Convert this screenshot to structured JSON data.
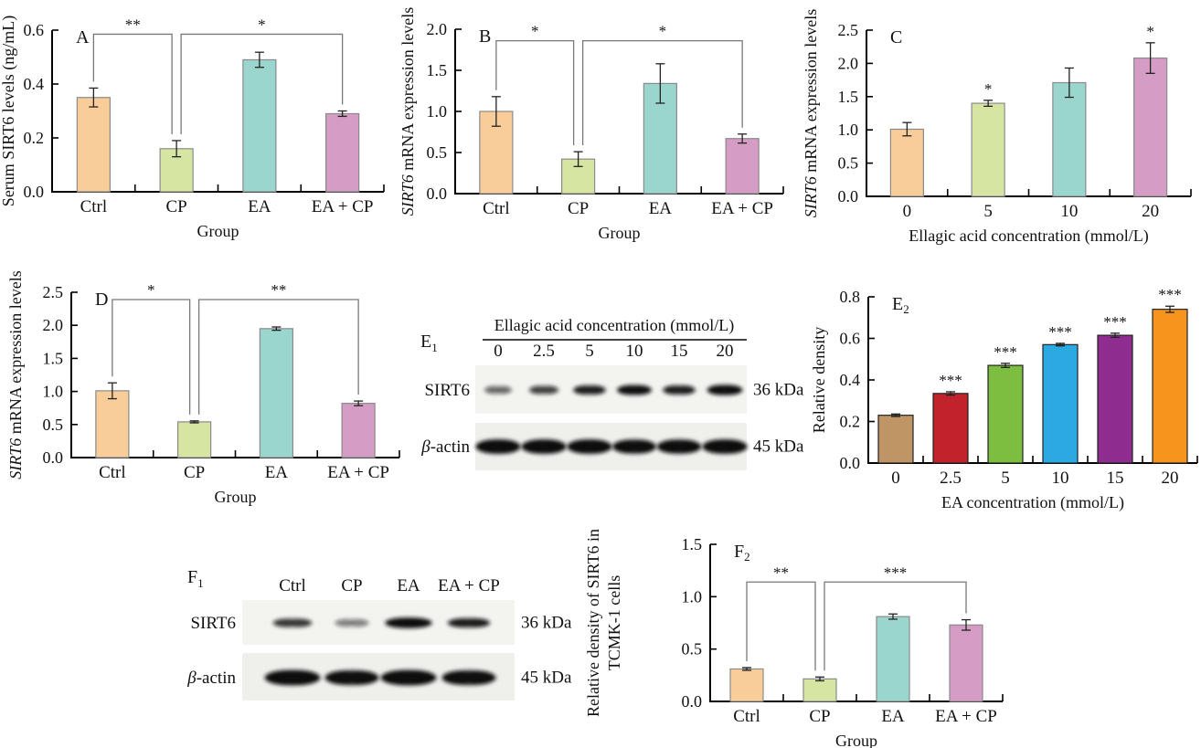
{
  "figure": {
    "background": "#ffffff",
    "text_color": "#111111",
    "axis_color": "#000000",
    "bracket_color": "#787878",
    "star_color": "#4f4f4f",
    "group_bar_stroke": "#8a8a8a",
    "e2_bar_stroke": "#222222"
  },
  "chart_data": [
    {
      "id": "A",
      "type": "bar",
      "panel_label": "A",
      "panel_sub": "",
      "ylabel_lines": [
        [
          {
            "t": "Serum SIRT6 levels (ng/mL)",
            "i": false
          }
        ]
      ],
      "xlabel": "Group",
      "categories": [
        "Ctrl",
        "CP",
        "EA",
        "EA + CP"
      ],
      "values": [
        0.35,
        0.16,
        0.49,
        0.29
      ],
      "errors": [
        0.035,
        0.03,
        0.028,
        0.01
      ],
      "ylim": [
        0,
        0.6
      ],
      "yticks": [
        "0.0",
        "0.2",
        "0.4",
        "0.6"
      ],
      "bar_colors": [
        "#F8CD99",
        "#D6E5A2",
        "#9BD6CE",
        "#D59CC5"
      ],
      "bar_stroke": "#8a8a8a",
      "sig_above": [
        null,
        null,
        null,
        null
      ],
      "brackets": [
        {
          "from": 0,
          "to": 1,
          "label": "**",
          "top": 0.585,
          "off": [
            0,
            -5
          ]
        },
        {
          "from": 1,
          "to": 3,
          "label": "*",
          "top": 0.585,
          "off": [
            5,
            0
          ]
        }
      ]
    },
    {
      "id": "B",
      "type": "bar",
      "panel_label": "B",
      "panel_sub": "",
      "ylabel_lines": [
        [
          {
            "t": "SIRT6",
            "i": true
          },
          {
            "t": " mRNA expression levels",
            "i": false
          }
        ]
      ],
      "xlabel": "Group",
      "categories": [
        "Ctrl",
        "CP",
        "EA",
        "EA + CP"
      ],
      "values": [
        1.0,
        0.42,
        1.34,
        0.67
      ],
      "errors": [
        0.18,
        0.09,
        0.24,
        0.055
      ],
      "ylim": [
        0,
        2.0
      ],
      "yticks": [
        "0.0",
        "0.5",
        "1.0",
        "1.5",
        "2.0"
      ],
      "bar_colors": [
        "#F8CD99",
        "#D6E5A2",
        "#9BD6CE",
        "#D59CC5"
      ],
      "bar_stroke": "#8a8a8a",
      "sig_above": [
        null,
        null,
        null,
        null
      ],
      "brackets": [
        {
          "from": 0,
          "to": 1,
          "label": "*",
          "top": 1.86,
          "off": [
            0,
            -5
          ]
        },
        {
          "from": 1,
          "to": 3,
          "label": "*",
          "top": 1.86,
          "off": [
            5,
            0
          ]
        }
      ]
    },
    {
      "id": "C",
      "type": "bar",
      "panel_label": "C",
      "panel_sub": "",
      "ylabel_lines": [
        [
          {
            "t": "SIRT6",
            "i": true
          },
          {
            "t": " mRNA expression levels",
            "i": false
          }
        ]
      ],
      "xlabel": "Ellagic acid concentration (mmol/L)",
      "categories": [
        "0",
        "5",
        "10",
        "20"
      ],
      "values": [
        1.01,
        1.4,
        1.71,
        2.08
      ],
      "errors": [
        0.1,
        0.045,
        0.22,
        0.23
      ],
      "ylim": [
        0,
        2.5
      ],
      "yticks": [
        "0.0",
        "0.5",
        "1.0",
        "1.5",
        "2.0",
        "2.5"
      ],
      "bar_colors": [
        "#F8CD99",
        "#D6E5A2",
        "#9BD6CE",
        "#D59CC5"
      ],
      "bar_stroke": "#8a8a8a",
      "sig_above": [
        null,
        "*",
        null,
        "*"
      ],
      "brackets": []
    },
    {
      "id": "D",
      "type": "bar",
      "panel_label": "D",
      "panel_sub": "",
      "ylabel_lines": [
        [
          {
            "t": "SIRT6",
            "i": true
          },
          {
            "t": " mRNA expression levels",
            "i": false
          }
        ]
      ],
      "xlabel": "Group",
      "categories": [
        "Ctrl",
        "CP",
        "EA",
        "EA + CP"
      ],
      "values": [
        1.01,
        0.54,
        1.95,
        0.82
      ],
      "errors": [
        0.12,
        0.015,
        0.025,
        0.035
      ],
      "ylim": [
        0,
        2.5
      ],
      "yticks": [
        "0.0",
        "0.5",
        "1.0",
        "1.5",
        "2.0",
        "2.5"
      ],
      "bar_colors": [
        "#F8CD99",
        "#D6E5A2",
        "#9BD6CE",
        "#D59CC5"
      ],
      "bar_stroke": "#8a8a8a",
      "sig_above": [
        null,
        null,
        null,
        null
      ],
      "brackets": [
        {
          "from": 0,
          "to": 1,
          "label": "*",
          "top": 2.39,
          "off": [
            0,
            -5
          ]
        },
        {
          "from": 1,
          "to": 3,
          "label": "**",
          "top": 2.39,
          "off": [
            5,
            0
          ]
        }
      ]
    },
    {
      "id": "E2",
      "type": "bar",
      "panel_label": "E",
      "panel_sub": "2",
      "ylabel_lines": [
        [
          {
            "t": "Relative density",
            "i": false
          }
        ]
      ],
      "xlabel": "EA concentration (mmol/L)",
      "categories": [
        "0",
        "2.5",
        "5",
        "10",
        "15",
        "20"
      ],
      "values": [
        0.23,
        0.335,
        0.47,
        0.57,
        0.615,
        0.74
      ],
      "errors": [
        0.006,
        0.008,
        0.01,
        0.006,
        0.01,
        0.015
      ],
      "ylim": [
        0,
        0.8
      ],
      "yticks": [
        "0.0",
        "0.2",
        "0.4",
        "0.6",
        "0.8"
      ],
      "bar_colors": [
        "#BF9565",
        "#C2222B",
        "#7CBE3F",
        "#2BA9E1",
        "#8F2C90",
        "#F6951E"
      ],
      "bar_stroke": "#222222",
      "sig_above": [
        null,
        "***",
        "***",
        "***",
        "***",
        "***"
      ],
      "brackets": []
    },
    {
      "id": "F2",
      "type": "bar",
      "panel_label": "F",
      "panel_sub": "2",
      "ylabel_lines": [
        [
          {
            "t": "Relative density of SIRT6 in",
            "i": false
          }
        ],
        [
          {
            "t": "TCMK-1 cells",
            "i": false
          }
        ]
      ],
      "xlabel": "Group",
      "categories": [
        "Ctrl",
        "CP",
        "EA",
        "EA + CP"
      ],
      "values": [
        0.31,
        0.215,
        0.81,
        0.73
      ],
      "errors": [
        0.013,
        0.018,
        0.025,
        0.05
      ],
      "ylim": [
        0,
        1.5
      ],
      "yticks": [
        "0.0",
        "0.5",
        "1.0",
        "1.5"
      ],
      "bar_colors": [
        "#F8CD99",
        "#D6E5A2",
        "#9BD6CE",
        "#D59CC5"
      ],
      "bar_stroke": "#8a8a8a",
      "sig_above": [
        null,
        null,
        null,
        null
      ],
      "brackets": [
        {
          "from": 0,
          "to": 1,
          "label": "**",
          "top": 1.14,
          "off": [
            0,
            -5
          ]
        },
        {
          "from": 1,
          "to": 3,
          "label": "***",
          "top": 1.14,
          "off": [
            5,
            0
          ]
        }
      ]
    }
  ],
  "blots": [
    {
      "id": "E1",
      "panel_label": "E",
      "panel_sub": "1",
      "header": "Ellagic acid concentration (mmol/L)",
      "lanes": [
        "0",
        "2.5",
        "5",
        "10",
        "15",
        "20"
      ],
      "rows": [
        {
          "label_parts": [
            {
              "t": "SIRT6",
              "i": false
            }
          ],
          "kda": "36 kDa",
          "intensities": [
            0.35,
            0.5,
            0.7,
            0.85,
            0.7,
            0.9
          ]
        },
        {
          "label_parts": [
            {
              "t": "β",
              "i": true
            },
            {
              "t": "-actin",
              "i": false
            }
          ],
          "kda": "45 kDa",
          "intensities": [
            0.95,
            0.95,
            0.95,
            0.9,
            0.92,
            0.95
          ]
        }
      ]
    },
    {
      "id": "F1",
      "panel_label": "F",
      "panel_sub": "1",
      "header": null,
      "lanes": [
        "Ctrl",
        "CP",
        "EA",
        "EA + CP"
      ],
      "rows": [
        {
          "label_parts": [
            {
              "t": "SIRT6",
              "i": false
            }
          ],
          "kda": "36 kDa",
          "intensities": [
            0.55,
            0.28,
            0.95,
            0.72
          ]
        },
        {
          "label_parts": [
            {
              "t": "β",
              "i": true
            },
            {
              "t": "-actin",
              "i": false
            }
          ],
          "kda": "45 kDa",
          "intensities": [
            0.95,
            0.88,
            0.95,
            0.88
          ]
        }
      ]
    }
  ]
}
